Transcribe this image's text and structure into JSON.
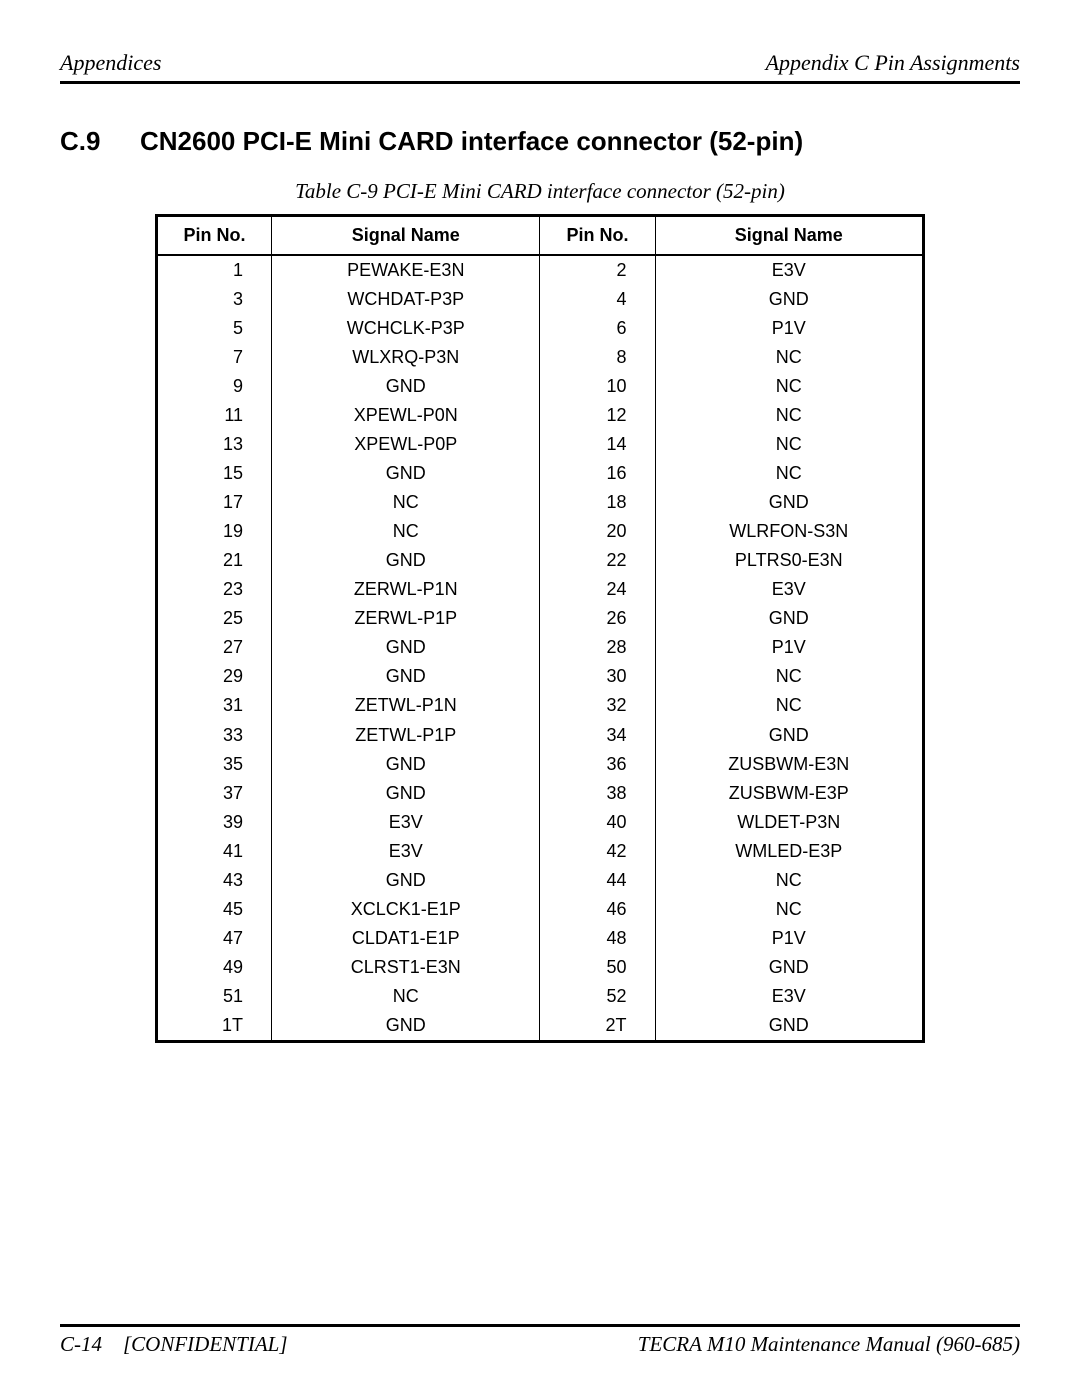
{
  "header": {
    "left": "Appendices",
    "right": "Appendix C  Pin Assignments"
  },
  "section": {
    "number": "C.9",
    "title": "CN2600  PCI-E Mini CARD interface connector (52-pin)"
  },
  "table": {
    "caption": "Table C-9 PCI-E Mini CARD interface connector  (52-pin)",
    "columns": [
      "Pin No.",
      "Signal Name",
      "Pin No.",
      "Signal Name"
    ],
    "rows": [
      [
        "1",
        "PEWAKE-E3N",
        "2",
        "E3V"
      ],
      [
        "3",
        "WCHDAT-P3P",
        "4",
        "GND"
      ],
      [
        "5",
        "WCHCLK-P3P",
        "6",
        "P1V"
      ],
      [
        "7",
        "WLXRQ-P3N",
        "8",
        "NC"
      ],
      [
        "9",
        "GND",
        "10",
        "NC"
      ],
      [
        "11",
        "XPEWL-P0N",
        "12",
        "NC"
      ],
      [
        "13",
        "XPEWL-P0P",
        "14",
        "NC"
      ],
      [
        "15",
        "GND",
        "16",
        "NC"
      ],
      [
        "17",
        "NC",
        "18",
        "GND"
      ],
      [
        "19",
        "NC",
        "20",
        "WLRFON-S3N"
      ],
      [
        "21",
        "GND",
        "22",
        "PLTRS0-E3N"
      ],
      [
        "23",
        "ZERWL-P1N",
        "24",
        "E3V"
      ],
      [
        "25",
        "ZERWL-P1P",
        "26",
        "GND"
      ],
      [
        "27",
        "GND",
        "28",
        "P1V"
      ],
      [
        "29",
        "GND",
        "30",
        "NC"
      ],
      [
        "31",
        "ZETWL-P1N",
        "32",
        "NC"
      ],
      [
        "33",
        "ZETWL-P1P",
        "34",
        "GND"
      ],
      [
        "35",
        "GND",
        "36",
        "ZUSBWM-E3N"
      ],
      [
        "37",
        "GND",
        "38",
        "ZUSBWM-E3P"
      ],
      [
        "39",
        "E3V",
        "40",
        "WLDET-P3N"
      ],
      [
        "41",
        "E3V",
        "42",
        "WMLED-E3P"
      ],
      [
        "43",
        "GND",
        "44",
        "NC"
      ],
      [
        "45",
        "XCLCK1-E1P",
        "46",
        "NC"
      ],
      [
        "47",
        "CLDAT1-E1P",
        "48",
        "P1V"
      ],
      [
        "49",
        "CLRST1-E3N",
        "50",
        "GND"
      ],
      [
        "51",
        "NC",
        "52",
        "E3V"
      ],
      [
        "1T",
        "GND",
        "2T",
        "GND"
      ]
    ]
  },
  "footer": {
    "page": "C-14",
    "confidential": "[CONFIDENTIAL]",
    "manual": "TECRA M10 Maintenance Manual (960-685)"
  }
}
